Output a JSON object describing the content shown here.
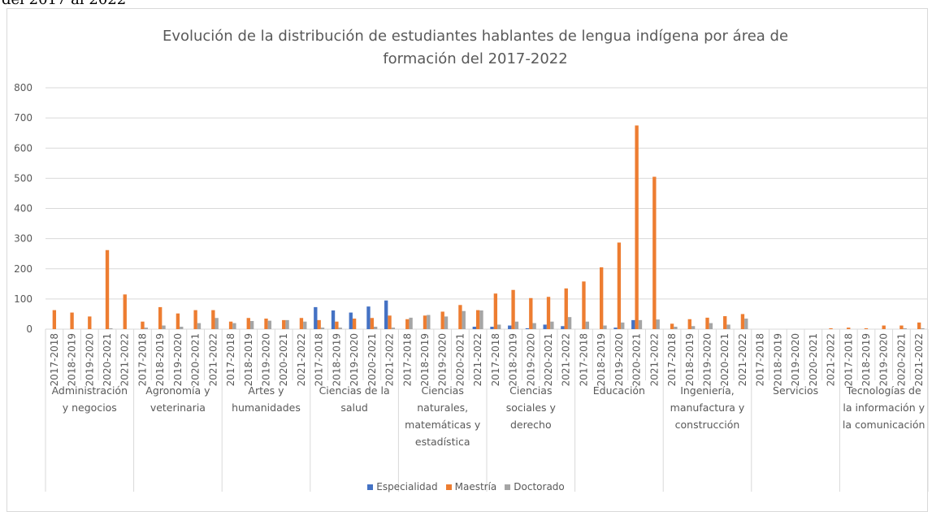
{
  "caption": "del 2017 al 2022",
  "chart_data": {
    "type": "bar",
    "title": "Evolución de la distribución de estudiantes hablantes de lengua indígena por área de formación del 2017-2022",
    "category_groups": [
      "Administración y negocios",
      "Agronomía y veterinaria",
      "Artes y humanidades",
      "Ciencias de la salud",
      "Ciencias naturales, matemáticas y estadística",
      "Ciencias sociales y derecho",
      "Educación",
      "Ingeniería, manufactura y construcción",
      "Servicios",
      "Tecnologías de la información y la comunicación"
    ],
    "categories": [
      "2017-2018",
      "2018-2019",
      "2019-2020",
      "2020-2021",
      "2021-2022",
      "2017-2018",
      "2018-2019",
      "2019-2020",
      "2020-2021",
      "2021-2022",
      "2017-2018",
      "2018-2019",
      "2019-2020",
      "2020-2021",
      "2021-2022",
      "2017-2018",
      "2018-2019",
      "2019-2020",
      "2020-2021",
      "2021-2022",
      "2017-2018",
      "2018-2019",
      "2019-2020",
      "2020-2021",
      "2021-2022",
      "2017-2018",
      "2018-2019",
      "2019-2020",
      "2020-2021",
      "2021-2022",
      "2017-2018",
      "2018-2019",
      "2019-2020",
      "2020-2021",
      "2021-2022",
      "2017-2018",
      "2018-2019",
      "2019-2020",
      "2020-2021",
      "2021-2022",
      "2017-2018",
      "2018-2019",
      "2019-2020",
      "2020-2021",
      "2021-2022",
      "2017-2018",
      "2018-2019",
      "2019-2020",
      "2020-2021",
      "2021-2022"
    ],
    "series": [
      {
        "name": "Especialidad",
        "color": "#4472c4",
        "values": [
          0,
          0,
          0,
          0,
          0,
          0,
          0,
          0,
          0,
          0,
          0,
          0,
          0,
          0,
          0,
          73,
          62,
          55,
          75,
          95,
          0,
          0,
          0,
          0,
          8,
          8,
          12,
          3,
          15,
          10,
          0,
          0,
          5,
          30,
          0,
          0,
          0,
          0,
          0,
          0,
          0,
          0,
          0,
          0,
          0,
          0,
          0,
          0,
          0,
          0
        ]
      },
      {
        "name": "Maestría",
        "color": "#ed7d31",
        "values": [
          63,
          55,
          42,
          262,
          115,
          25,
          73,
          52,
          63,
          63,
          25,
          37,
          35,
          30,
          37,
          30,
          25,
          35,
          37,
          45,
          33,
          45,
          58,
          80,
          63,
          118,
          130,
          103,
          107,
          135,
          158,
          205,
          287,
          675,
          505,
          18,
          33,
          38,
          43,
          50,
          0,
          0,
          0,
          0,
          3,
          5,
          3,
          12,
          12,
          22
        ]
      },
      {
        "name": "Doctorado",
        "color": "#a5a5a5",
        "values": [
          0,
          0,
          0,
          3,
          0,
          5,
          12,
          8,
          20,
          37,
          20,
          27,
          28,
          30,
          25,
          5,
          5,
          0,
          8,
          5,
          38,
          47,
          42,
          60,
          62,
          15,
          25,
          20,
          25,
          40,
          25,
          12,
          22,
          30,
          32,
          8,
          10,
          20,
          15,
          35,
          0,
          0,
          0,
          0,
          0,
          0,
          0,
          0,
          3,
          3
        ]
      }
    ],
    "ylim": [
      0,
      800
    ],
    "yticks": [
      0,
      100,
      200,
      300,
      400,
      500,
      600,
      700,
      800
    ],
    "grid": true,
    "legend": "bottom"
  }
}
